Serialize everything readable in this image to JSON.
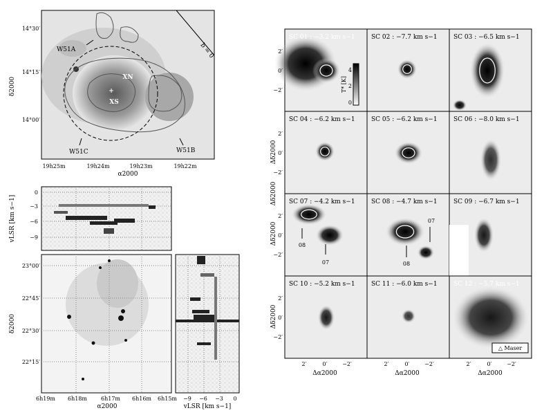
{
  "top_left": {
    "y_ticks": [
      "14°30′",
      "14°15′",
      "14°00′"
    ],
    "x_ticks": [
      "19h25m",
      "19h24m",
      "19h23m",
      "19h22m"
    ],
    "xlabel": "α2000",
    "ylabel": "δ2000",
    "labels": {
      "w51a": "W51A",
      "w51b": "W51B",
      "w51c": "W51C",
      "xn": "XN",
      "xs": "XS",
      "bzero": "b = 0"
    }
  },
  "mid_left": {
    "ylabel": "vLSR [km s−1]",
    "y_ticks": [
      "0",
      "−3",
      "−6",
      "−9"
    ]
  },
  "bottom_left": {
    "ylabel": "δ2000",
    "y_ticks": [
      "23°00′",
      "22°45′",
      "22°30′",
      "22°15′"
    ],
    "x_ticks": [
      "6h19m",
      "6h18m",
      "6h17m",
      "6h16m",
      "6h15m"
    ],
    "xlabel": "α2000"
  },
  "bottom_small": {
    "x_ticks": [
      "−9",
      "−6",
      "−3",
      "0"
    ],
    "xlabel": "vLSR [km s−1]"
  },
  "grid": {
    "panels": [
      {
        "id": "SC 01",
        "v": "−3.2 km s−1"
      },
      {
        "id": "SC 02",
        "v": "−7.7 km s−1"
      },
      {
        "id": "SC 03",
        "v": "−6.5 km s−1"
      },
      {
        "id": "SC 04",
        "v": "−6.2 km s−1"
      },
      {
        "id": "SC 05",
        "v": "−6.2 km s−1"
      },
      {
        "id": "SC 06",
        "v": "−8.0 km s−1"
      },
      {
        "id": "SC 07",
        "v": "−4.2 km s−1"
      },
      {
        "id": "SC 08",
        "v": "−4.7 km s−1"
      },
      {
        "id": "SC 09",
        "v": "−6.7 km s−1"
      },
      {
        "id": "SC 10",
        "v": "−5.2 km s−1"
      },
      {
        "id": "SC 11",
        "v": "−6.0 km s−1"
      },
      {
        "id": "SC 12",
        "v": "−5.7 km s−1"
      }
    ],
    "y_ticks": [
      "2′",
      "0′",
      "−2′"
    ],
    "x_ticks": [
      "2′",
      "0′",
      "−2′"
    ],
    "xlabel": "Δα2000",
    "ylabel": "Δδ2000",
    "colorbar_label": "T* [K]",
    "colorbar_ticks": [
      "4",
      "2",
      "0"
    ],
    "arrow_labels": {
      "sc07_a": "08",
      "sc07_b": "07",
      "sc08_a": "07",
      "sc08_b": "08"
    },
    "legend": "△ Maser"
  }
}
